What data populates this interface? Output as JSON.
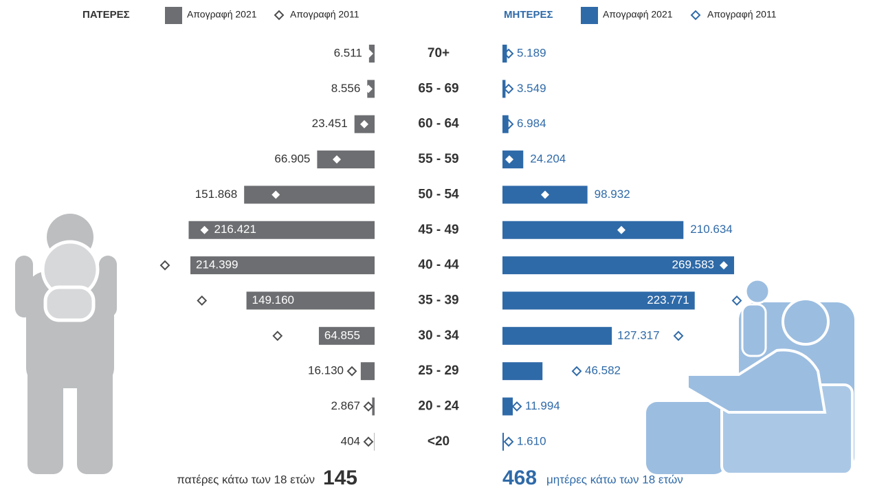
{
  "chart_data": {
    "type": "bar",
    "orientation": "horizontal",
    "categories": [
      "70+",
      "65 - 69",
      "60 - 64",
      "55 - 59",
      "50 - 54",
      "45 - 49",
      "40 - 44",
      "35 - 39",
      "30 - 34",
      "25 - 29",
      "20 - 24",
      "<20"
    ],
    "groups": [
      {
        "title": "ΠΑΤΕΡΕΣ",
        "side": "left",
        "label_color": "#333333",
        "series": [
          {
            "name": "Απογραφή 2021",
            "color": "#6d6e71",
            "marker": "bar",
            "values": [
              6511,
              8556,
              23451,
              66905,
              151868,
              216421,
              214399,
              149160,
              64855,
              16130,
              2867,
              404
            ],
            "value_labels": [
              "6.511",
              "8.556",
              "23.451",
              "66.905",
              "151.868",
              "216.421",
              "214.399",
              "149.160",
              "64.855",
              "16.130",
              "2.867",
              "404"
            ]
          },
          {
            "name": "Απογραφή 2011",
            "color": "#4d4d4f",
            "marker": "diamond",
            "values": [
              6400,
              7200,
              12000,
              44000,
              115000,
              198000,
              244000,
              201000,
              113000,
              26400,
              7200,
              7200
            ]
          }
        ],
        "note": {
          "label": "πατέρες κάτω των 18 ετών",
          "value": 145
        }
      },
      {
        "title": "ΜΗΤΕΡΕΣ",
        "side": "right",
        "label_color": "#2f6aa8",
        "series": [
          {
            "name": "Απογραφή 2021",
            "color": "#2f6aa8",
            "marker": "bar",
            "values": [
              5189,
              3549,
              6984,
              24204,
              98932,
              210634,
              269583,
              223771,
              127317,
              46582,
              11994,
              1610
            ],
            "value_labels": [
              "5.189",
              "3.549",
              "6.984",
              "24.204",
              "98.932",
              "210.634",
              "269.583",
              "223.771",
              "127.317",
              "46.582",
              "11.994",
              "1.610"
            ]
          },
          {
            "name": "Απογραφή 2011",
            "color": "#2f6aa8",
            "marker": "diamond",
            "values": [
              7200,
              7200,
              7200,
              8000,
              49600,
              138400,
              257600,
              272800,
              204800,
              86400,
              16800,
              7200
            ]
          }
        ],
        "note": {
          "label": "μητέρες κάτω των 18 ετών",
          "value": 468
        }
      }
    ]
  }
}
